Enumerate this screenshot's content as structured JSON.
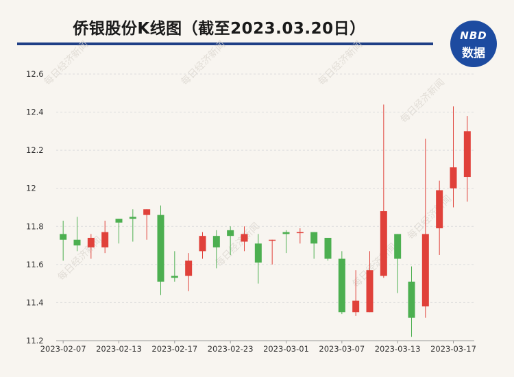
{
  "title": "侨银股份K线图（截至2023.03.20日）",
  "logo": {
    "line1": "NBD",
    "line2": "数据"
  },
  "watermark": "每日经济新闻",
  "colors": {
    "up": "#e0413a",
    "down": "#4caf50",
    "rule": "#1f3f86",
    "logo": "#1d4ba0"
  },
  "chart_data": {
    "type": "candlestick",
    "title": "侨银股份K线图（截至2023.03.20日）",
    "ylim": [
      11.2,
      12.6
    ],
    "y_ticks": [
      "11.2",
      "11.4",
      "11.6",
      "11.8",
      "12",
      "12.2",
      "12.4",
      "12.6"
    ],
    "x_tick_labels": [
      "2023-02-07",
      "2023-02-13",
      "2023-02-17",
      "2023-02-23",
      "2023-03-01",
      "2023-03-07",
      "2023-03-13",
      "2023-03-17"
    ],
    "x_tick_every": 4,
    "grid": "horizontal",
    "candles": [
      {
        "o": 11.76,
        "c": 11.73,
        "h": 11.83,
        "l": 11.62
      },
      {
        "o": 11.73,
        "c": 11.7,
        "h": 11.85,
        "l": 11.67
      },
      {
        "o": 11.69,
        "c": 11.74,
        "h": 11.76,
        "l": 11.63
      },
      {
        "o": 11.69,
        "c": 11.77,
        "h": 11.83,
        "l": 11.66
      },
      {
        "o": 11.84,
        "c": 11.82,
        "h": 11.84,
        "l": 11.71
      },
      {
        "o": 11.85,
        "c": 11.84,
        "h": 11.89,
        "l": 11.72
      },
      {
        "o": 11.86,
        "c": 11.89,
        "h": 11.89,
        "l": 11.73
      },
      {
        "o": 11.86,
        "c": 11.51,
        "h": 11.91,
        "l": 11.44
      },
      {
        "o": 11.54,
        "c": 11.53,
        "h": 11.67,
        "l": 11.51
      },
      {
        "o": 11.54,
        "c": 11.62,
        "h": 11.66,
        "l": 11.46
      },
      {
        "o": 11.67,
        "c": 11.75,
        "h": 11.77,
        "l": 11.63
      },
      {
        "o": 11.75,
        "c": 11.69,
        "h": 11.78,
        "l": 11.58
      },
      {
        "o": 11.78,
        "c": 11.75,
        "h": 11.8,
        "l": 11.65
      },
      {
        "o": 11.72,
        "c": 11.76,
        "h": 11.8,
        "l": 11.67
      },
      {
        "o": 11.71,
        "c": 11.61,
        "h": 11.76,
        "l": 11.5
      },
      {
        "o": 11.73,
        "c": 11.73,
        "h": 11.73,
        "l": 11.6
      },
      {
        "o": 11.77,
        "c": 11.76,
        "h": 11.78,
        "l": 11.66
      },
      {
        "o": 11.77,
        "c": 11.77,
        "h": 11.79,
        "l": 11.71
      },
      {
        "o": 11.77,
        "c": 11.71,
        "h": 11.77,
        "l": 11.63
      },
      {
        "o": 11.74,
        "c": 11.63,
        "h": 11.74,
        "l": 11.62
      },
      {
        "o": 11.63,
        "c": 11.35,
        "h": 11.67,
        "l": 11.34
      },
      {
        "o": 11.35,
        "c": 11.41,
        "h": 11.57,
        "l": 11.33
      },
      {
        "o": 11.35,
        "c": 11.57,
        "h": 11.67,
        "l": 11.35
      },
      {
        "o": 11.54,
        "c": 11.88,
        "h": 12.44,
        "l": 11.53
      },
      {
        "o": 11.76,
        "c": 11.63,
        "h": 11.76,
        "l": 11.45
      },
      {
        "o": 11.51,
        "c": 11.32,
        "h": 11.59,
        "l": 11.22
      },
      {
        "o": 11.38,
        "c": 11.76,
        "h": 12.26,
        "l": 11.32
      },
      {
        "o": 11.79,
        "c": 11.99,
        "h": 12.04,
        "l": 11.65
      },
      {
        "o": 12.0,
        "c": 12.11,
        "h": 12.43,
        "l": 11.9
      },
      {
        "o": 12.06,
        "c": 12.3,
        "h": 12.38,
        "l": 11.93
      }
    ]
  }
}
